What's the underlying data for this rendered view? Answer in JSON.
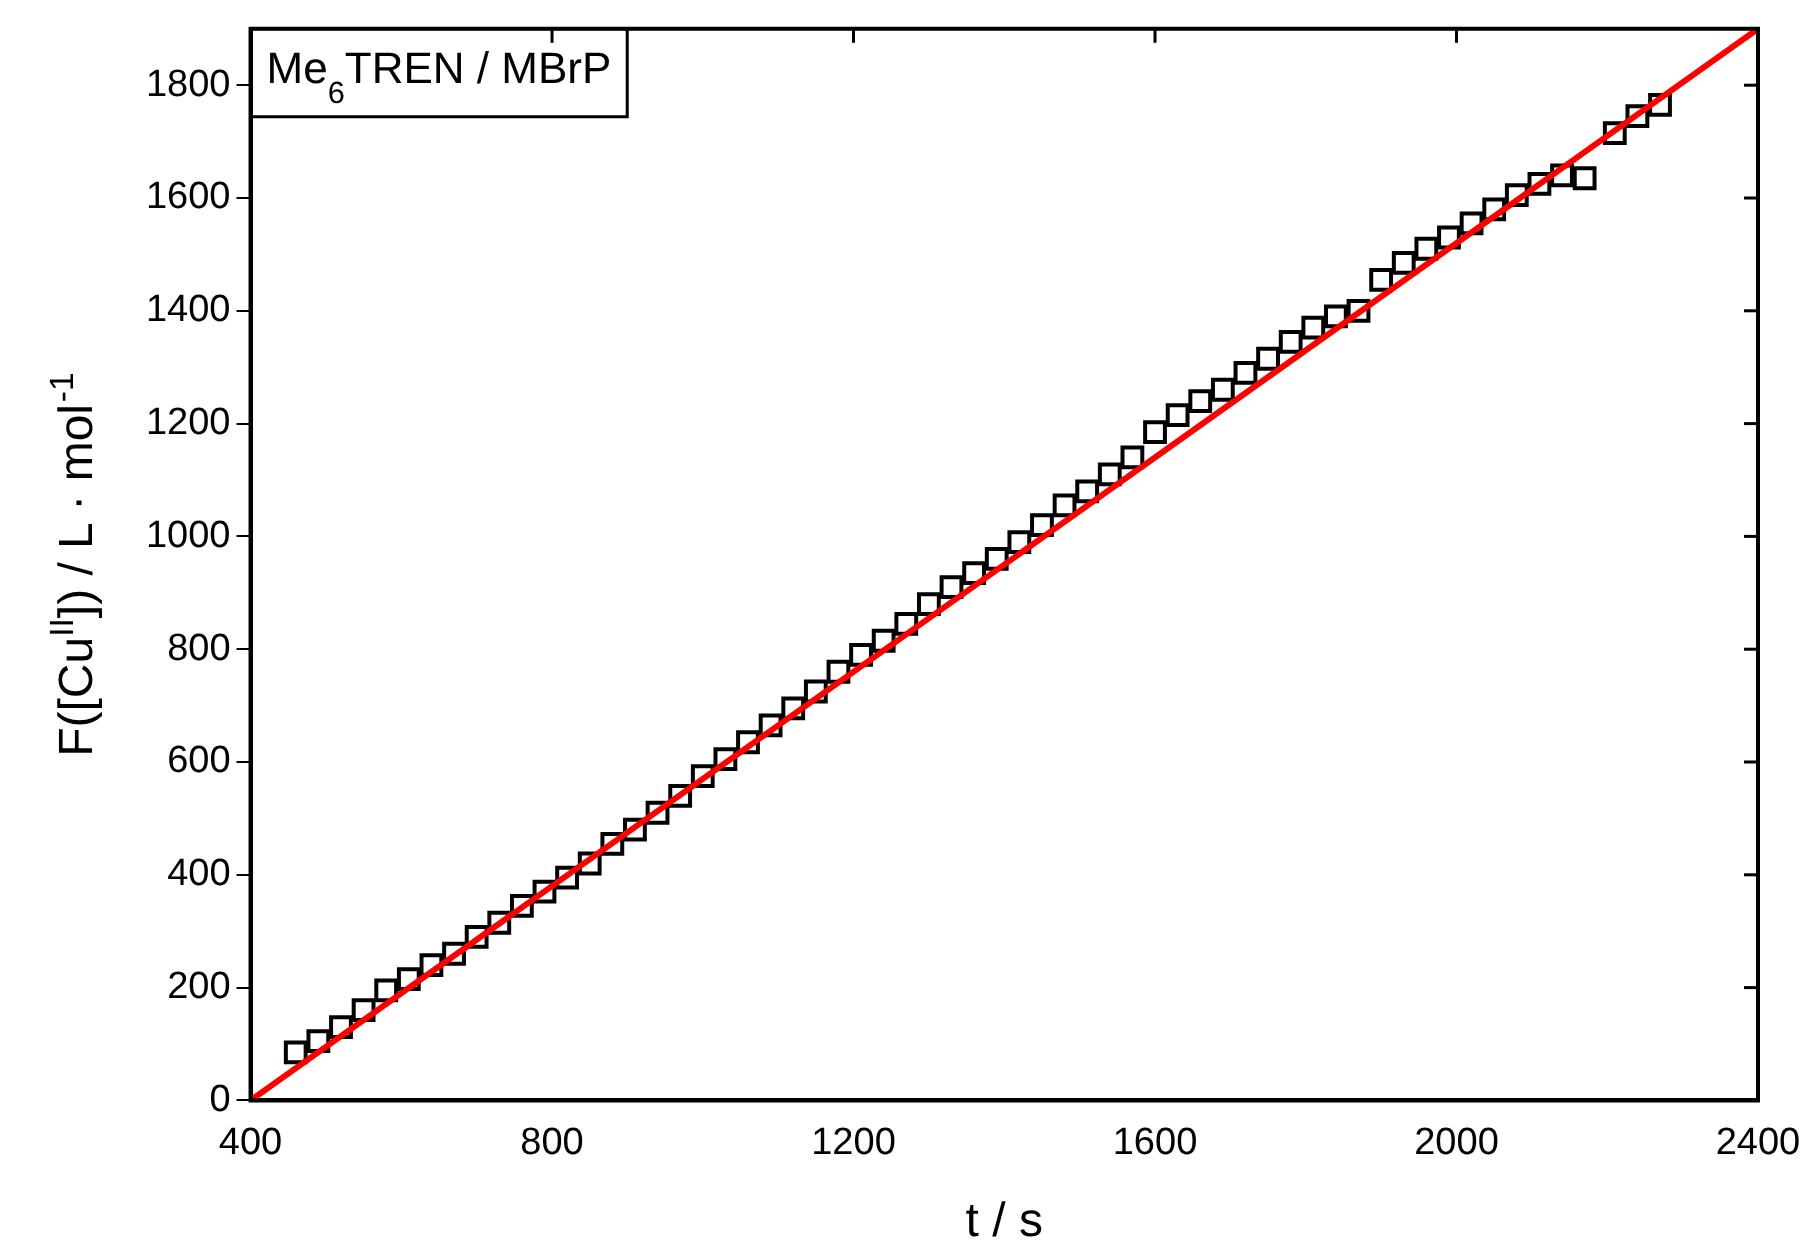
{
  "chart_data": {
    "type": "scatter",
    "xlabel": "t / s",
    "ylabel": "F([Cu$^{II}$]) / L · mol$^{-1}$",
    "annotations": [
      "Me$_{6}$TREN / MBrP"
    ],
    "xlim": [
      400,
      2400
    ],
    "xticks": [
      400,
      800,
      1200,
      1600,
      2000,
      2400
    ],
    "ylim": [
      0,
      1900
    ],
    "yticks": [
      0,
      200,
      400,
      600,
      800,
      1000,
      1200,
      1400,
      1600,
      1800
    ],
    "grid": false,
    "legend": false,
    "marker": "square",
    "series": [
      {
        "color": "#000000",
        "x": [
          460,
          490,
          520,
          550,
          580,
          610,
          640,
          670,
          700,
          730,
          760,
          790,
          820,
          850,
          880,
          910,
          940,
          970,
          1000,
          1030,
          1060,
          1090,
          1120,
          1150,
          1180,
          1210,
          1240,
          1270,
          1300,
          1330,
          1360,
          1390,
          1420,
          1450,
          1480,
          1510,
          1540,
          1570,
          1600,
          1630,
          1660,
          1690,
          1720,
          1750,
          1780,
          1810,
          1840,
          1870,
          1900,
          1930,
          1960,
          1990,
          2020,
          2050,
          2080,
          2110,
          2140,
          2170,
          2210,
          2240,
          2270
        ],
        "values": [
          85,
          105,
          130,
          160,
          195,
          215,
          240,
          260,
          290,
          315,
          345,
          370,
          395,
          420,
          455,
          480,
          510,
          540,
          575,
          605,
          635,
          665,
          695,
          725,
          760,
          790,
          815,
          845,
          880,
          910,
          935,
          960,
          990,
          1020,
          1055,
          1080,
          1110,
          1140,
          1185,
          1215,
          1240,
          1260,
          1290,
          1315,
          1345,
          1370,
          1390,
          1400,
          1455,
          1485,
          1510,
          1530,
          1555,
          1580,
          1605,
          1625,
          1640,
          1635,
          1715,
          1745,
          1765
        ]
      },
      {
        "type": "line",
        "color": "#ff0000",
        "x": [
          400,
          2400
        ],
        "values": [
          0,
          1900
        ],
        "marker": "none",
        "line_style": "solid"
      }
    ]
  }
}
